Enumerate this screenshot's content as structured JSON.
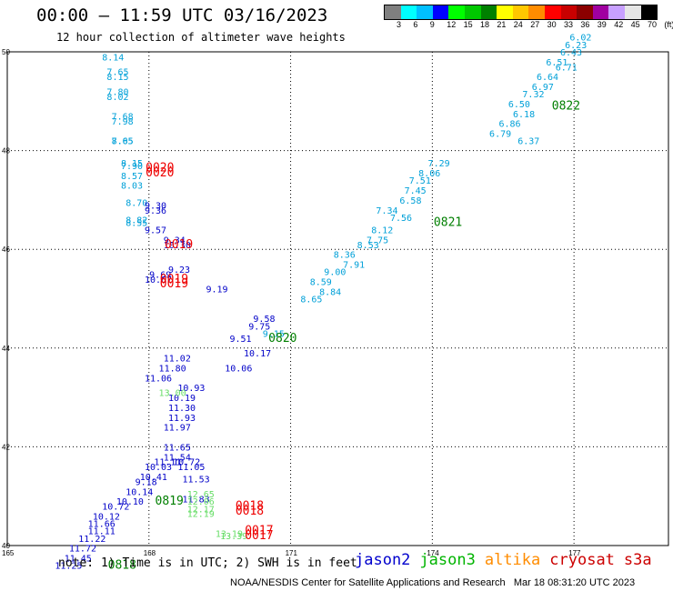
{
  "header": {
    "title": "00:00 – 11:59 UTC 03/16/2023",
    "subtitle": "12 hour collection of altimeter wave heights"
  },
  "scale": {
    "labels": [
      "3",
      "6",
      "9",
      "12",
      "15",
      "18",
      "21",
      "24",
      "27",
      "30",
      "33",
      "36",
      "39",
      "42",
      "45",
      "70",
      "(ft)"
    ],
    "colors": [
      "#7f7f7f",
      "#00ffff",
      "#00bfff",
      "#0000ff",
      "#00ff00",
      "#00c800",
      "#008000",
      "#ffff00",
      "#ffc800",
      "#ff8c00",
      "#ff0000",
      "#c80000",
      "#8b0000",
      "#a000a0",
      "#c8a0ff",
      "#e6e6e6",
      "#000000"
    ]
  },
  "footer": {
    "note": "note: 1) Time is in UTC; 2) SWH is in feet",
    "credit": "NOAA/NESDIS Center for Satellite Applications and Research   Mar 18 08:31:20 UTC 2023",
    "legend": [
      {
        "name": "jason2",
        "color": "#0000cd"
      },
      {
        "name": "jason3",
        "color": "#00b400"
      },
      {
        "name": "altika",
        "color": "#ff8c00"
      },
      {
        "name": "cryosat",
        "color": "#cc0000"
      },
      {
        "name": "s3a",
        "color": "#cc0000"
      }
    ]
  },
  "chart_data": {
    "type": "scatter",
    "xlim": [
      165,
      179
    ],
    "ylim": [
      40,
      50
    ],
    "x_ticks": [
      "165",
      "168",
      "171",
      "174",
      "177"
    ],
    "y_ticks": [
      "40",
      "42",
      "44",
      "46",
      "48",
      "50"
    ],
    "grid": true,
    "series": [
      {
        "color": "#00a0d8",
        "points": [
          [
            167.2,
            49.9,
            "8.14"
          ],
          [
            167.3,
            49.6,
            "7.65"
          ],
          [
            167.3,
            49.5,
            "8.15"
          ],
          [
            167.3,
            49.2,
            "7.80"
          ],
          [
            167.3,
            49.1,
            "8.02"
          ],
          [
            167.4,
            48.7,
            "7.68"
          ],
          [
            167.4,
            48.6,
            "7.98"
          ],
          [
            167.4,
            48.2,
            "8.05"
          ],
          [
            167.4,
            48.2,
            "7.65"
          ],
          [
            167.6,
            47.75,
            "8.15"
          ],
          [
            167.6,
            47.7,
            "7.90"
          ],
          [
            167.6,
            47.5,
            "8.57"
          ],
          [
            167.6,
            47.3,
            "8.03"
          ],
          [
            167.7,
            46.95,
            "8.70"
          ],
          [
            167.7,
            46.6,
            "8.82"
          ],
          [
            167.7,
            46.55,
            "8.55"
          ],
          [
            170.6,
            44.3,
            "9.15"
          ],
          [
            171.6,
            45.35,
            "8.59"
          ],
          [
            171.8,
            45.15,
            "8.84"
          ],
          [
            171.4,
            45.0,
            "8.65"
          ],
          [
            171.9,
            45.55,
            "9.00"
          ],
          [
            172.1,
            45.9,
            "8.36"
          ],
          [
            172.3,
            45.7,
            "7.91"
          ],
          [
            172.6,
            46.1,
            "8.53"
          ],
          [
            172.8,
            46.2,
            "7.75"
          ],
          [
            172.9,
            46.4,
            "8.12"
          ],
          [
            173.0,
            46.8,
            "7.34"
          ],
          [
            173.3,
            46.65,
            "7.56"
          ],
          [
            173.5,
            47.0,
            "6.58"
          ],
          [
            173.6,
            47.2,
            "7.45"
          ],
          [
            173.7,
            47.4,
            "7.51"
          ],
          [
            173.9,
            47.55,
            "8.06"
          ],
          [
            174.1,
            47.75,
            "7.29"
          ],
          [
            175.4,
            48.35,
            "6.79"
          ],
          [
            175.6,
            48.55,
            "6.86"
          ],
          [
            175.9,
            48.75,
            "6.18"
          ],
          [
            175.8,
            48.95,
            "6.50"
          ],
          [
            176.1,
            49.15,
            "7.32"
          ],
          [
            176.3,
            49.3,
            "6.97"
          ],
          [
            176.4,
            49.5,
            "6.64"
          ],
          [
            176.8,
            49.7,
            "6.71"
          ],
          [
            176.6,
            49.8,
            "6.51"
          ],
          [
            176.9,
            50.0,
            "6.43"
          ],
          [
            177.0,
            50.15,
            "6.23"
          ],
          [
            177.1,
            50.3,
            "6.02"
          ],
          [
            176.0,
            48.2,
            "6.37"
          ]
        ]
      },
      {
        "color": "#0000c8",
        "points": [
          [
            168.1,
            46.9,
            "9.30"
          ],
          [
            168.1,
            46.8,
            "9.36"
          ],
          [
            168.1,
            46.4,
            "9.57"
          ],
          [
            168.5,
            46.2,
            "9.34"
          ],
          [
            168.5,
            46.1,
            "10.30"
          ],
          [
            168.2,
            45.5,
            "9.69"
          ],
          [
            168.1,
            45.4,
            "10.67"
          ],
          [
            168.6,
            45.6,
            "9.23"
          ],
          [
            169.4,
            45.2,
            "9.19"
          ],
          [
            170.4,
            44.6,
            "9.58"
          ],
          [
            170.3,
            44.45,
            "9.75"
          ],
          [
            169.9,
            44.2,
            "9.51"
          ],
          [
            170.2,
            43.9,
            "10.17"
          ],
          [
            169.8,
            43.6,
            "10.06"
          ],
          [
            168.5,
            43.8,
            "11.02"
          ],
          [
            168.4,
            43.6,
            "11.80"
          ],
          [
            168.1,
            43.4,
            "11.06"
          ],
          [
            168.8,
            43.2,
            "10.93"
          ],
          [
            168.6,
            43.0,
            "10.19"
          ],
          [
            168.6,
            42.8,
            "11.30"
          ],
          [
            168.6,
            42.6,
            "11.93"
          ],
          [
            168.5,
            42.4,
            "11.97"
          ],
          [
            168.5,
            42.0,
            "11.65"
          ],
          [
            168.5,
            41.8,
            "11.54"
          ],
          [
            168.3,
            41.7,
            "11.11"
          ],
          [
            168.1,
            41.6,
            "10.03"
          ],
          [
            168.0,
            41.4,
            "10.41"
          ],
          [
            167.9,
            41.3,
            "9.18"
          ],
          [
            167.7,
            41.1,
            "10.14"
          ],
          [
            167.5,
            40.9,
            "10.10"
          ],
          [
            167.2,
            40.8,
            "10.72"
          ],
          [
            167.0,
            40.6,
            "10.12"
          ],
          [
            166.9,
            40.45,
            "11.66"
          ],
          [
            166.9,
            40.3,
            "11.11"
          ],
          [
            166.7,
            40.15,
            "11.22"
          ],
          [
            166.5,
            39.95,
            "11.72"
          ],
          [
            166.4,
            39.75,
            "11.45"
          ],
          [
            166.2,
            39.6,
            "11.25"
          ],
          [
            168.7,
            41.7,
            "10.72"
          ],
          [
            168.8,
            41.6,
            "11.05"
          ],
          [
            168.9,
            41.35,
            "11.53"
          ],
          [
            168.9,
            40.95,
            "11.83"
          ]
        ]
      },
      {
        "color": "#66dd66",
        "points": [
          [
            168.4,
            43.1,
            "13.00"
          ],
          [
            169.0,
            41.05,
            "12.65"
          ],
          [
            169.0,
            40.9,
            "12.06"
          ],
          [
            169.0,
            40.75,
            "12.17"
          ],
          [
            169.0,
            40.65,
            "12.19"
          ],
          [
            169.6,
            40.25,
            "13.19"
          ],
          [
            169.7,
            40.2,
            "13.39"
          ]
        ]
      },
      {
        "color": "#007f00",
        "points": [
          [
            167.4,
            39.6,
            "0818"
          ],
          [
            168.4,
            40.9,
            "0819"
          ],
          [
            170.8,
            44.2,
            "0820"
          ],
          [
            174.3,
            46.55,
            "0821"
          ],
          [
            176.8,
            48.9,
            "0822"
          ]
        ],
        "large": true
      },
      {
        "color": "#ee0000",
        "points": [
          [
            168.2,
            47.65,
            "0020"
          ],
          [
            168.2,
            47.55,
            "0020"
          ],
          [
            168.6,
            46.1,
            "0019"
          ],
          [
            168.5,
            45.4,
            "0019"
          ],
          [
            168.5,
            45.3,
            "0019"
          ],
          [
            170.1,
            40.8,
            "0018"
          ],
          [
            170.1,
            40.7,
            "0018"
          ],
          [
            170.3,
            40.3,
            "0017"
          ],
          [
            170.3,
            40.2,
            "0017"
          ]
        ],
        "large": true
      }
    ]
  }
}
